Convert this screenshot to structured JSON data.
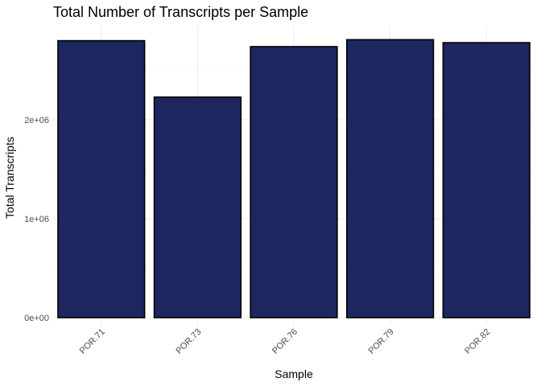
{
  "chart_data": {
    "type": "bar",
    "title": "Total Number of Transcripts per Sample",
    "xlabel": "Sample",
    "ylabel": "Total Transcripts",
    "categories": [
      "POR.71",
      "POR.73",
      "POR.76",
      "POR.79",
      "POR.82"
    ],
    "values": [
      2800000,
      2230000,
      2740000,
      2810000,
      2780000
    ],
    "ylim": [
      0,
      2950000
    ],
    "yticks": [
      0,
      1000000,
      2000000
    ],
    "ytick_labels": [
      "0e+00",
      "1e+06",
      "2e+06"
    ],
    "grid": true,
    "bar_color": "#1e2660",
    "bar_border_color": "#000000"
  }
}
